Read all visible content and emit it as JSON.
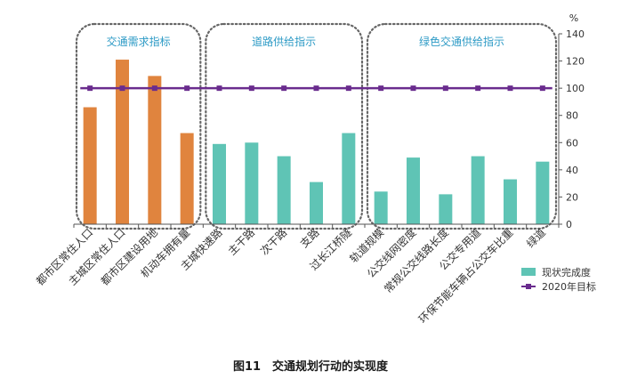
{
  "chart_data": {
    "type": "bar",
    "title": "",
    "ylabel": "%",
    "xlabel": "",
    "ylim": [
      0,
      140
    ],
    "yticks": [
      0,
      20,
      40,
      60,
      80,
      100,
      120,
      140
    ],
    "categories": [
      "都市区常住人口",
      "主城区常住人口",
      "都市区建设用地",
      "机动车拥有量",
      "主城快速路",
      "主干路",
      "次干路",
      "支路",
      "过长江桥隧",
      "轨道规模",
      "公交线网密度",
      "常规公交线路长度",
      "公交专用道",
      "环保节能车辆占公交车比重",
      "绿道"
    ],
    "values": [
      86,
      121,
      109,
      67,
      59,
      60,
      50,
      31,
      67,
      24,
      49,
      22,
      50,
      33,
      46
    ],
    "groups": [
      {
        "label": "交通需求指标",
        "start": 0,
        "end": 3,
        "color": "#e0843e"
      },
      {
        "label": "道路供给指示",
        "start": 4,
        "end": 8,
        "color": "#5fc4b5"
      },
      {
        "label": "绿色交通供给指示",
        "start": 9,
        "end": 14,
        "color": "#5fc4b5"
      }
    ],
    "series": [
      {
        "name": "现状完成度",
        "type": "bar",
        "color": "#5fc4b5"
      },
      {
        "name": "2020年目标",
        "type": "line",
        "color": "#6a2c8e",
        "values": [
          100,
          100,
          100,
          100,
          100,
          100,
          100,
          100,
          100,
          100,
          100,
          100,
          100,
          100,
          100
        ]
      }
    ],
    "legend_position": "bottom-right",
    "caption": "图11　交通规划行动的实现度"
  }
}
